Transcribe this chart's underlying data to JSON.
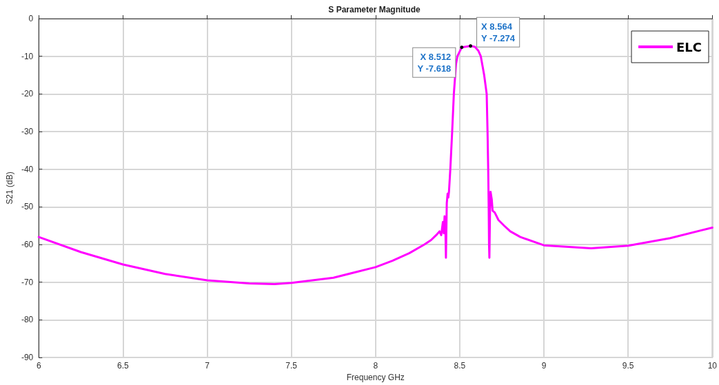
{
  "chart_data": {
    "type": "line",
    "title": "S Parameter Magnitude",
    "xlabel": "Frequency GHz",
    "ylabel": "S21 (dB)",
    "xlim": [
      6,
      10
    ],
    "xticks": [
      6,
      6.5,
      7,
      7.5,
      8,
      8.5,
      9,
      9.5,
      10
    ],
    "ylim": [
      -90,
      0
    ],
    "yticks": [
      -90,
      -80,
      -70,
      -60,
      -50,
      -40,
      -30,
      -20,
      -10,
      0
    ],
    "grid": true,
    "legend": "top right",
    "marker": "none",
    "line_style": "solid",
    "annotations": [
      {
        "text": "X 8.512\nY -7.618",
        "x": 8.512,
        "y": -7.618
      },
      {
        "text": "X 8.564\nY -7.274",
        "x": 8.564,
        "y": -7.274
      }
    ],
    "series": [
      {
        "name": "ELC",
        "color": "#ff00ff",
        "x": [
          6,
          6.25,
          6.5,
          6.75,
          7,
          7.25,
          7.4,
          7.5,
          7.75,
          8,
          8.1,
          8.2,
          8.29,
          8.33,
          8.36,
          8.38,
          8.39,
          8.4,
          8.405,
          8.41,
          8.415,
          8.418,
          8.423,
          8.428,
          8.432,
          8.436,
          8.444,
          8.455,
          8.465,
          8.478,
          8.486,
          8.512,
          8.564,
          8.59,
          8.61,
          8.625,
          8.645,
          8.66,
          8.665,
          8.669,
          8.672,
          8.674,
          8.676,
          8.68,
          8.683,
          8.69,
          8.695,
          8.708,
          8.73,
          8.764,
          8.8,
          8.86,
          9,
          9.28,
          9.5,
          9.75,
          10
        ],
        "values": [
          -58,
          -62,
          -65.3,
          -67.8,
          -69.5,
          -70.3,
          -70.5,
          -70.2,
          -68.8,
          -66,
          -64.3,
          -62.3,
          -60,
          -58.8,
          -57.5,
          -56.5,
          -57.5,
          -54,
          -57,
          -52.5,
          -56,
          -63.5,
          -49,
          -46.5,
          -47.5,
          -46,
          -40,
          -30,
          -20,
          -12,
          -10,
          -7.618,
          -7.274,
          -7.5,
          -8.5,
          -10,
          -15,
          -20,
          -30,
          -40,
          -50,
          -60,
          -63.5,
          -50,
          -46,
          -48,
          -51,
          -51.5,
          -53.5,
          -55,
          -56.5,
          -58,
          -60.2,
          -61,
          -60.3,
          -58.3,
          -55.5
        ]
      }
    ]
  }
}
